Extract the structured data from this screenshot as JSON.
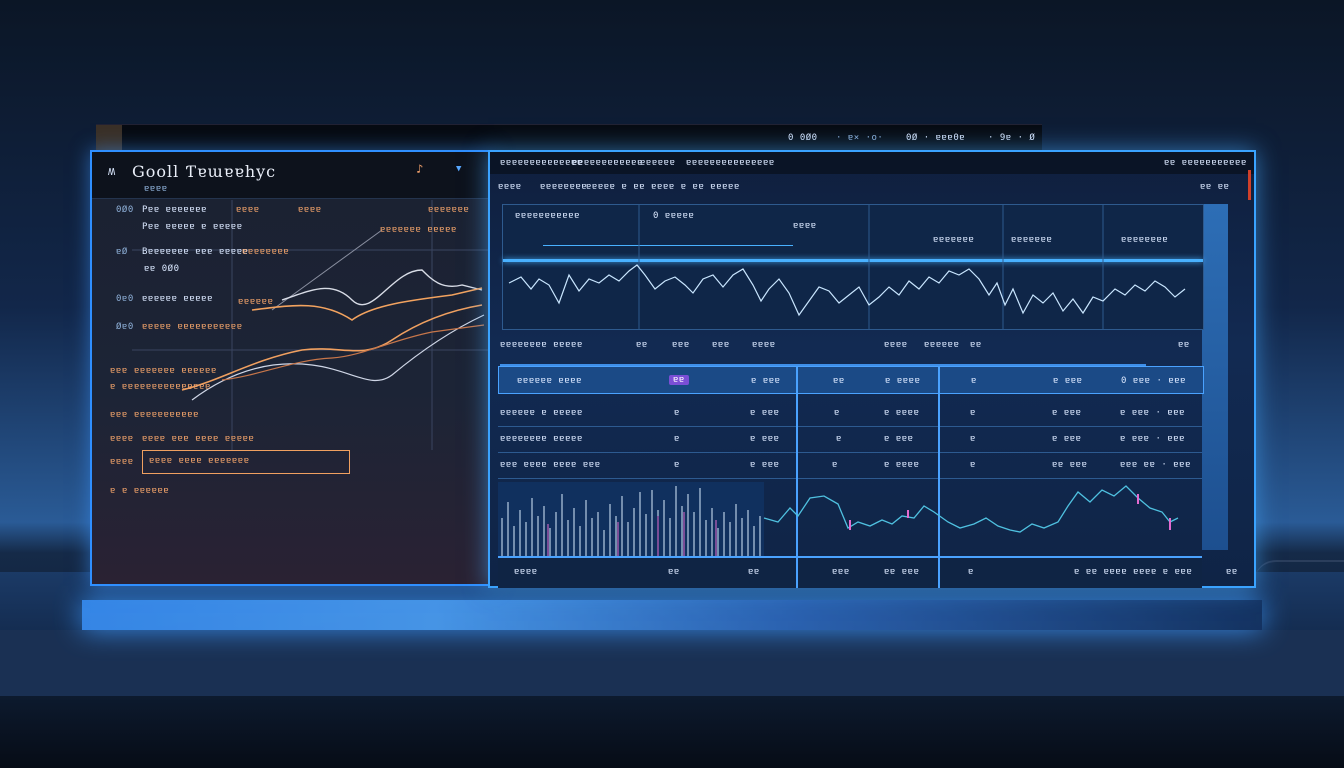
{
  "back_window": {
    "bar_text_1": "0 0Ø0",
    "bar_text_2": "· ɐ× ·o·",
    "bar_text_3": "0Ø · ɐɐɐ0ɐ",
    "bar_text_4": "· 9ɐ · Ø"
  },
  "left_panel": {
    "logo_glyph": "ʍ",
    "title": "Gooll Ƭɐɯɐɐhyc",
    "alert_icon": "bell-icon",
    "chevron_icon": "chevron-down-icon",
    "subheader": "ɐɐɐɐ",
    "rows": [
      {
        "prefix": "0Ø0",
        "label": "Pɐɐ ɐɐɐɐɐɐɐ",
        "mid": "ɐɐɐɐ",
        "right": "ɐɐɐɐ",
        "far": "ɐɐɐɐɐɐɐ"
      },
      {
        "prefix": "",
        "label": "Pɐɐ ɐɐɐɐɐ ɐ ɐɐɐɐɐ",
        "mid": "",
        "right": "",
        "far": "ɐɐɐɐɐɐɐ ɐɐɐɐɐ"
      },
      {
        "prefix": "ɐØ",
        "label": "Bɐɐɐɐɐɐɐ ɐɐɐ ɐɐɐɐɐ",
        "mid": "ɐɐɐɐɐɐɐɐ",
        "right": "",
        "far": ""
      },
      {
        "prefix": "",
        "label": "ɐɐ 0Ø0",
        "mid": "",
        "right": "",
        "far": ""
      },
      {
        "prefix": "0ɐ0",
        "label": "ɐɐɐɐɐɐ ɐɐɐɐɐ",
        "mid": "ɐɐɐɐɐɐ",
        "right": "",
        "far": ""
      },
      {
        "prefix": "Øɐ0",
        "label": "ɐɐɐɐɐ ɐɐɐɐɐɐɐɐɐɐɐ",
        "mid": "",
        "right": "",
        "far": ""
      },
      {
        "prefix": "ɐɐɐ",
        "label": "ɐɐɐɐɐɐɐ ɐɐɐɐɐɐ",
        "mid": "",
        "right": "",
        "far": ""
      },
      {
        "prefix": "ɐ ɐɐ",
        "label": "ɐɐɐɐɐɐɐɐɐɐɐɐɐ",
        "mid": "",
        "right": "",
        "far": ""
      },
      {
        "prefix": "ɐɐɐ",
        "label": "ɐɐɐɐɐɐɐɐɐɐɐ",
        "mid": "",
        "right": "",
        "far": ""
      },
      {
        "prefix": "ɐɐɐɐ",
        "label": "ɐɐɐɐ ɐɐɐ ɐɐɐɐ ɐɐɐɐɐ",
        "mid": "",
        "right": "",
        "far": ""
      },
      {
        "prefix": "ɐɐɐɐ",
        "label": "",
        "mid": "",
        "right": "",
        "far": ""
      },
      {
        "prefix": "ɐ",
        "label": "ɐ ɐɐɐɐɐɐ",
        "mid": "",
        "right": "",
        "far": ""
      }
    ],
    "button_label": "ɐɐɐɐ ɐɐɐɐ ɐɐɐɐɐɐɐ"
  },
  "right_panel": {
    "menu": [
      "ɐɐɐɐɐɐɐɐɐɐɐɐɐɐ",
      "ɐɐɐɐɐɐɐɐɐɐɐɐ",
      "ɐɐɐɐɐɐ",
      "ɐɐɐɐɐɐɐɐɐɐɐɐɐɐɐ"
    ],
    "menu_right": "ɐɐ ɐɐɐɐɐɐɐɐɐɐɐ",
    "toolbar": [
      "ɐɐɐɐ",
      "ɐɐɐɐɐɐɐɐ",
      "ɐɐɐɐɐ ɐ ɐɐ ɐɐɐɐ ɐ ɐɐ ɐɐɐɐɐ"
    ],
    "toolbar_right": "ɐɐ ɐɐ",
    "chart_labels": [
      "ɐɐɐɐɐɐɐɐɐɐɐ",
      "0 ɐɐɐɐɐ",
      "ɐɐɐɐ",
      "ɐɐɐɐɐɐɐ",
      "ɐɐɐɐɐɐɐ",
      "ɐɐɐɐɐɐɐɐ"
    ],
    "summary": [
      "ɐɐɐɐɐɐɐɐ ɐɐɐɐɐ",
      "ɐɐ",
      "ɐɐɐ",
      "ɐɐɐ",
      "ɐɐɐɐ",
      "ɐɐɐɐ",
      "ɐɐɐɐɐɐ",
      "ɐɐ",
      "ɐɐ"
    ],
    "table": [
      {
        "name": "ɐɐɐɐɐɐ ɐɐɐɐ",
        "b1": "ɐɐ",
        "v1": "ɐ ɐɐɐ",
        "b2": "ɐɐ",
        "v2": "ɐ ɐɐɐɐ",
        "b3": "ɐ",
        "v3": "ɐ ɐɐɐ",
        "v4": "0 ɐɐɐ · ɐɐɐ"
      },
      {
        "name": "ɐɐɐɐɐɐ ɐ ɐɐɐɐɐ",
        "b1": "ɐ",
        "v1": "ɐ ɐɐɐ",
        "b2": "ɐ",
        "v2": "ɐ ɐɐɐɐ",
        "b3": "ɐ",
        "v3": "ɐ ɐɐɐ",
        "v4": "ɐ ɐɐɐ · ɐɐɐ"
      },
      {
        "name": "ɐɐɐɐɐɐɐɐ ɐɐɐɐɐ",
        "b1": "ɐ",
        "v1": "ɐ ɐɐɐ",
        "b2": "ɐ",
        "v2": "ɐ ɐɐɐ",
        "b3": "ɐ",
        "v3": "ɐ ɐɐɐ",
        "v4": "ɐ ɐɐɐ · ɐɐɐ"
      },
      {
        "name": "ɐɐɐ ɐɐɐɐ ɐɐɐɐ ɐɐɐ",
        "b1": "ɐ",
        "v1": "ɐ ɐɐɐ",
        "b2": "ɐ",
        "v2": "ɐ ɐɐɐɐ",
        "b3": "ɐ",
        "v3": "ɐɐ ɐɐɐ",
        "v4": "ɐɐɐ ɐɐ · ɐɐɐ"
      }
    ],
    "footer": [
      "ɐɐɐɐ",
      "ɐɐ",
      "ɐɐ",
      "ɐɐɐ",
      "ɐɐ ɐɐɐ",
      "ɐ",
      "ɐ ɐɐ ɐɐɐɐ ɐɐɐɐ ɐ ɐɐɐ"
    ],
    "footer_right": "ɐɐ"
  }
}
